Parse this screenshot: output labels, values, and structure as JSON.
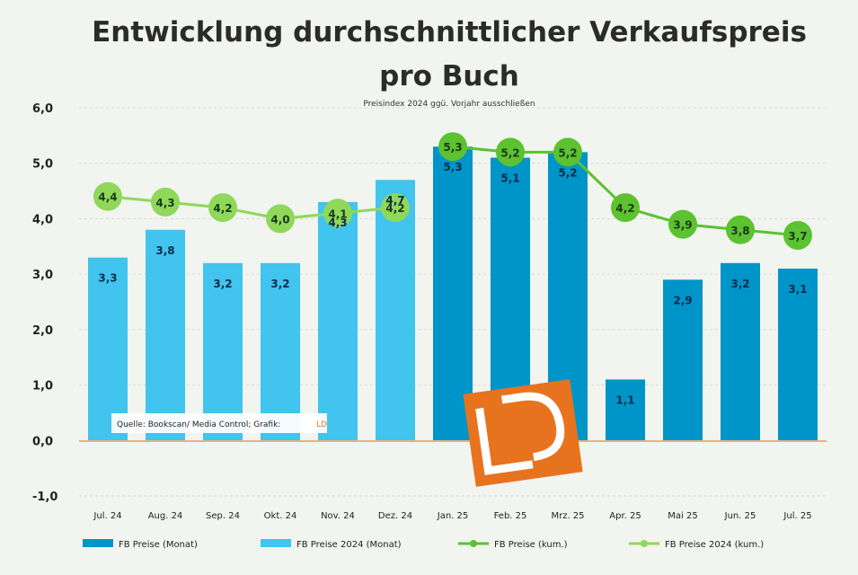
{
  "chart_data": {
    "type": "bar",
    "title_line1": "Entwicklung durchschnittlicher Verkaufspreis",
    "title_line2": "pro Buch",
    "subtitle": "Preisindex 2024 ggü. Vorjahr ausschließen",
    "source": "Quelle: Bookscan/ Media Control; Grafik:",
    "source_brand": "LD",
    "xlabel": "",
    "ylabel": "",
    "ylim": [
      -1,
      6
    ],
    "yticks": [
      "-1,0",
      "0,0",
      "1,0",
      "2,0",
      "3,0",
      "4,0",
      "5,0",
      "6,0"
    ],
    "categories": [
      "Jul. 24",
      "Aug. 24",
      "Sep. 24",
      "Okt. 24",
      "Nov. 24",
      "Dez. 24",
      "Jan. 25",
      "Feb. 25",
      "Mrz. 25",
      "Apr. 25",
      "Mai 25",
      "Jun. 25",
      "Jul. 25"
    ],
    "series": [
      {
        "name": "FB Preise (Monat)",
        "kind": "bar",
        "color": "#0095c8",
        "values": [
          null,
          null,
          null,
          null,
          null,
          null,
          5.3,
          5.1,
          5.2,
          1.1,
          2.9,
          3.2,
          3.1
        ],
        "labels": [
          "",
          "",
          "",
          "",
          "",
          "",
          "5,3",
          "5,1",
          "5,2",
          "1,1",
          "2,9",
          "3,2",
          "3,1"
        ]
      },
      {
        "name": "FB Preise 2024 (Monat)",
        "kind": "bar",
        "color": "#41c4ee",
        "values": [
          3.3,
          3.8,
          3.2,
          3.2,
          4.3,
          4.7,
          null,
          null,
          null,
          null,
          null,
          null,
          null
        ],
        "labels": [
          "3,3",
          "3,8",
          "3,2",
          "3,2",
          "4,3",
          "4,7",
          "",
          "",
          "",
          "",
          "",
          "",
          ""
        ]
      },
      {
        "name": "FB Preise (kum.)",
        "kind": "line",
        "color": "#5cc22f",
        "values": [
          null,
          null,
          null,
          null,
          null,
          null,
          5.3,
          5.2,
          5.2,
          4.2,
          3.9,
          3.8,
          3.7
        ],
        "labels": [
          "",
          "",
          "",
          "",
          "",
          "",
          "5,3",
          "5,2",
          "5,2",
          "4,2",
          "3,9",
          "3,8",
          "3,7"
        ]
      },
      {
        "name": "FB Preise 2024 (kum.)",
        "kind": "line",
        "color": "#8fd85a",
        "values": [
          4.4,
          4.3,
          4.2,
          4.0,
          4.1,
          4.2,
          null,
          null,
          null,
          null,
          null,
          null,
          null
        ],
        "labels": [
          "4,4",
          "4,3",
          "4,2",
          "4,0",
          "4,1",
          "4,2",
          "",
          "",
          "",
          "",
          "",
          "",
          ""
        ]
      }
    ],
    "grid": true,
    "legend_position": "bottom"
  }
}
